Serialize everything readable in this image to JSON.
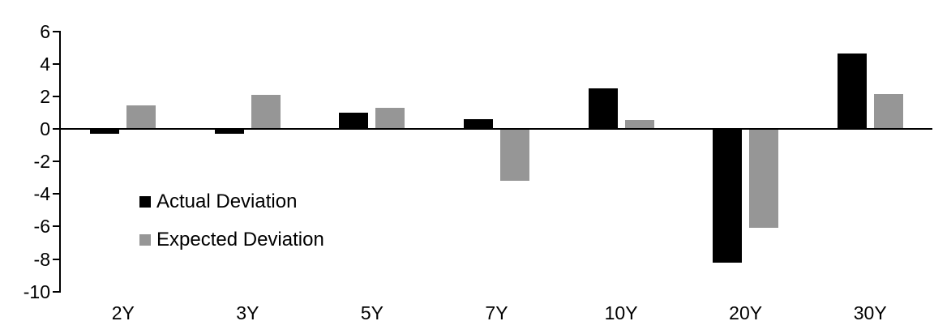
{
  "chart_data": {
    "type": "bar",
    "title": "",
    "xlabel": "",
    "ylabel": "",
    "categories": [
      "2Y",
      "3Y",
      "5Y",
      "7Y",
      "10Y",
      "20Y",
      "30Y"
    ],
    "series": [
      {
        "name": "Actual Deviation",
        "color": "#000000",
        "values": [
          -0.3,
          -0.3,
          1.0,
          0.6,
          2.5,
          -8.2,
          4.65
        ]
      },
      {
        "name": "Expected Deviation",
        "color": "#969696",
        "values": [
          1.45,
          2.1,
          1.3,
          -3.2,
          0.55,
          -6.1,
          2.15
        ]
      }
    ],
    "ylim": [
      -10,
      6
    ],
    "yticks": [
      6,
      4,
      2,
      0,
      -2,
      -4,
      -6,
      -8,
      -10
    ],
    "grid": false,
    "legend_position": "inside-left",
    "axis_color": "#000000",
    "background_color": "#ffffff"
  }
}
